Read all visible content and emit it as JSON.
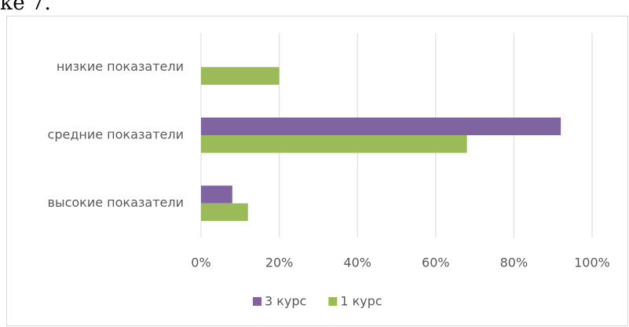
{
  "heading": "ке 7.",
  "chart_data": {
    "type": "hbar",
    "categories": [
      "низкие показатели",
      "средние показатели",
      "высокие показатели"
    ],
    "series": [
      {
        "name": "3 курс",
        "color": "#8064a2",
        "values": [
          0,
          92,
          8
        ]
      },
      {
        "name": "1 курс",
        "color": "#9bbb59",
        "values": [
          20,
          68,
          12
        ]
      }
    ],
    "xlim": [
      0,
      100
    ],
    "xticks": [
      {
        "value": 0,
        "label": "0%"
      },
      {
        "value": 20,
        "label": "20%"
      },
      {
        "value": 40,
        "label": "40%"
      },
      {
        "value": 60,
        "label": "60%"
      },
      {
        "value": 80,
        "label": "80%"
      },
      {
        "value": 100,
        "label": "100%"
      }
    ],
    "grid": true,
    "legend": "bottom"
  }
}
